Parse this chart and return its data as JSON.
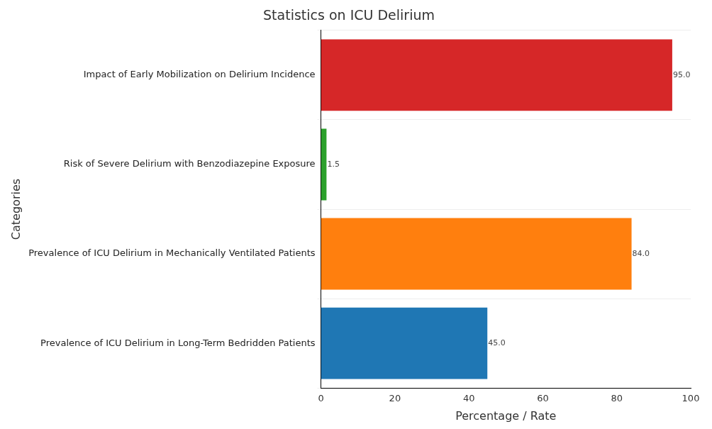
{
  "chart_data": {
    "type": "bar",
    "orientation": "horizontal",
    "title": "Statistics on ICU Delirium",
    "xlabel": "Percentage / Rate",
    "ylabel": "Categories",
    "categories": [
      "Impact of Early Mobilization on Delirium Incidence",
      "Risk of Severe Delirium with Benzodiazepine Exposure",
      "Prevalence of ICU Delirium in Mechanically Ventilated Patients",
      "Prevalence of ICU Delirium in Long-Term Bedridden Patients"
    ],
    "values": [
      95.0,
      1.5,
      84.0,
      45.0
    ],
    "colors": [
      "#d62728",
      "#2ca02c",
      "#ff7f0e",
      "#1f77b4"
    ],
    "value_labels": [
      "95.0",
      "1.5",
      "84.0",
      "45.0"
    ],
    "xlim": [
      0,
      100
    ],
    "xticks": [
      0,
      20,
      40,
      60,
      80,
      100
    ],
    "grid": "y",
    "legend": false
  }
}
